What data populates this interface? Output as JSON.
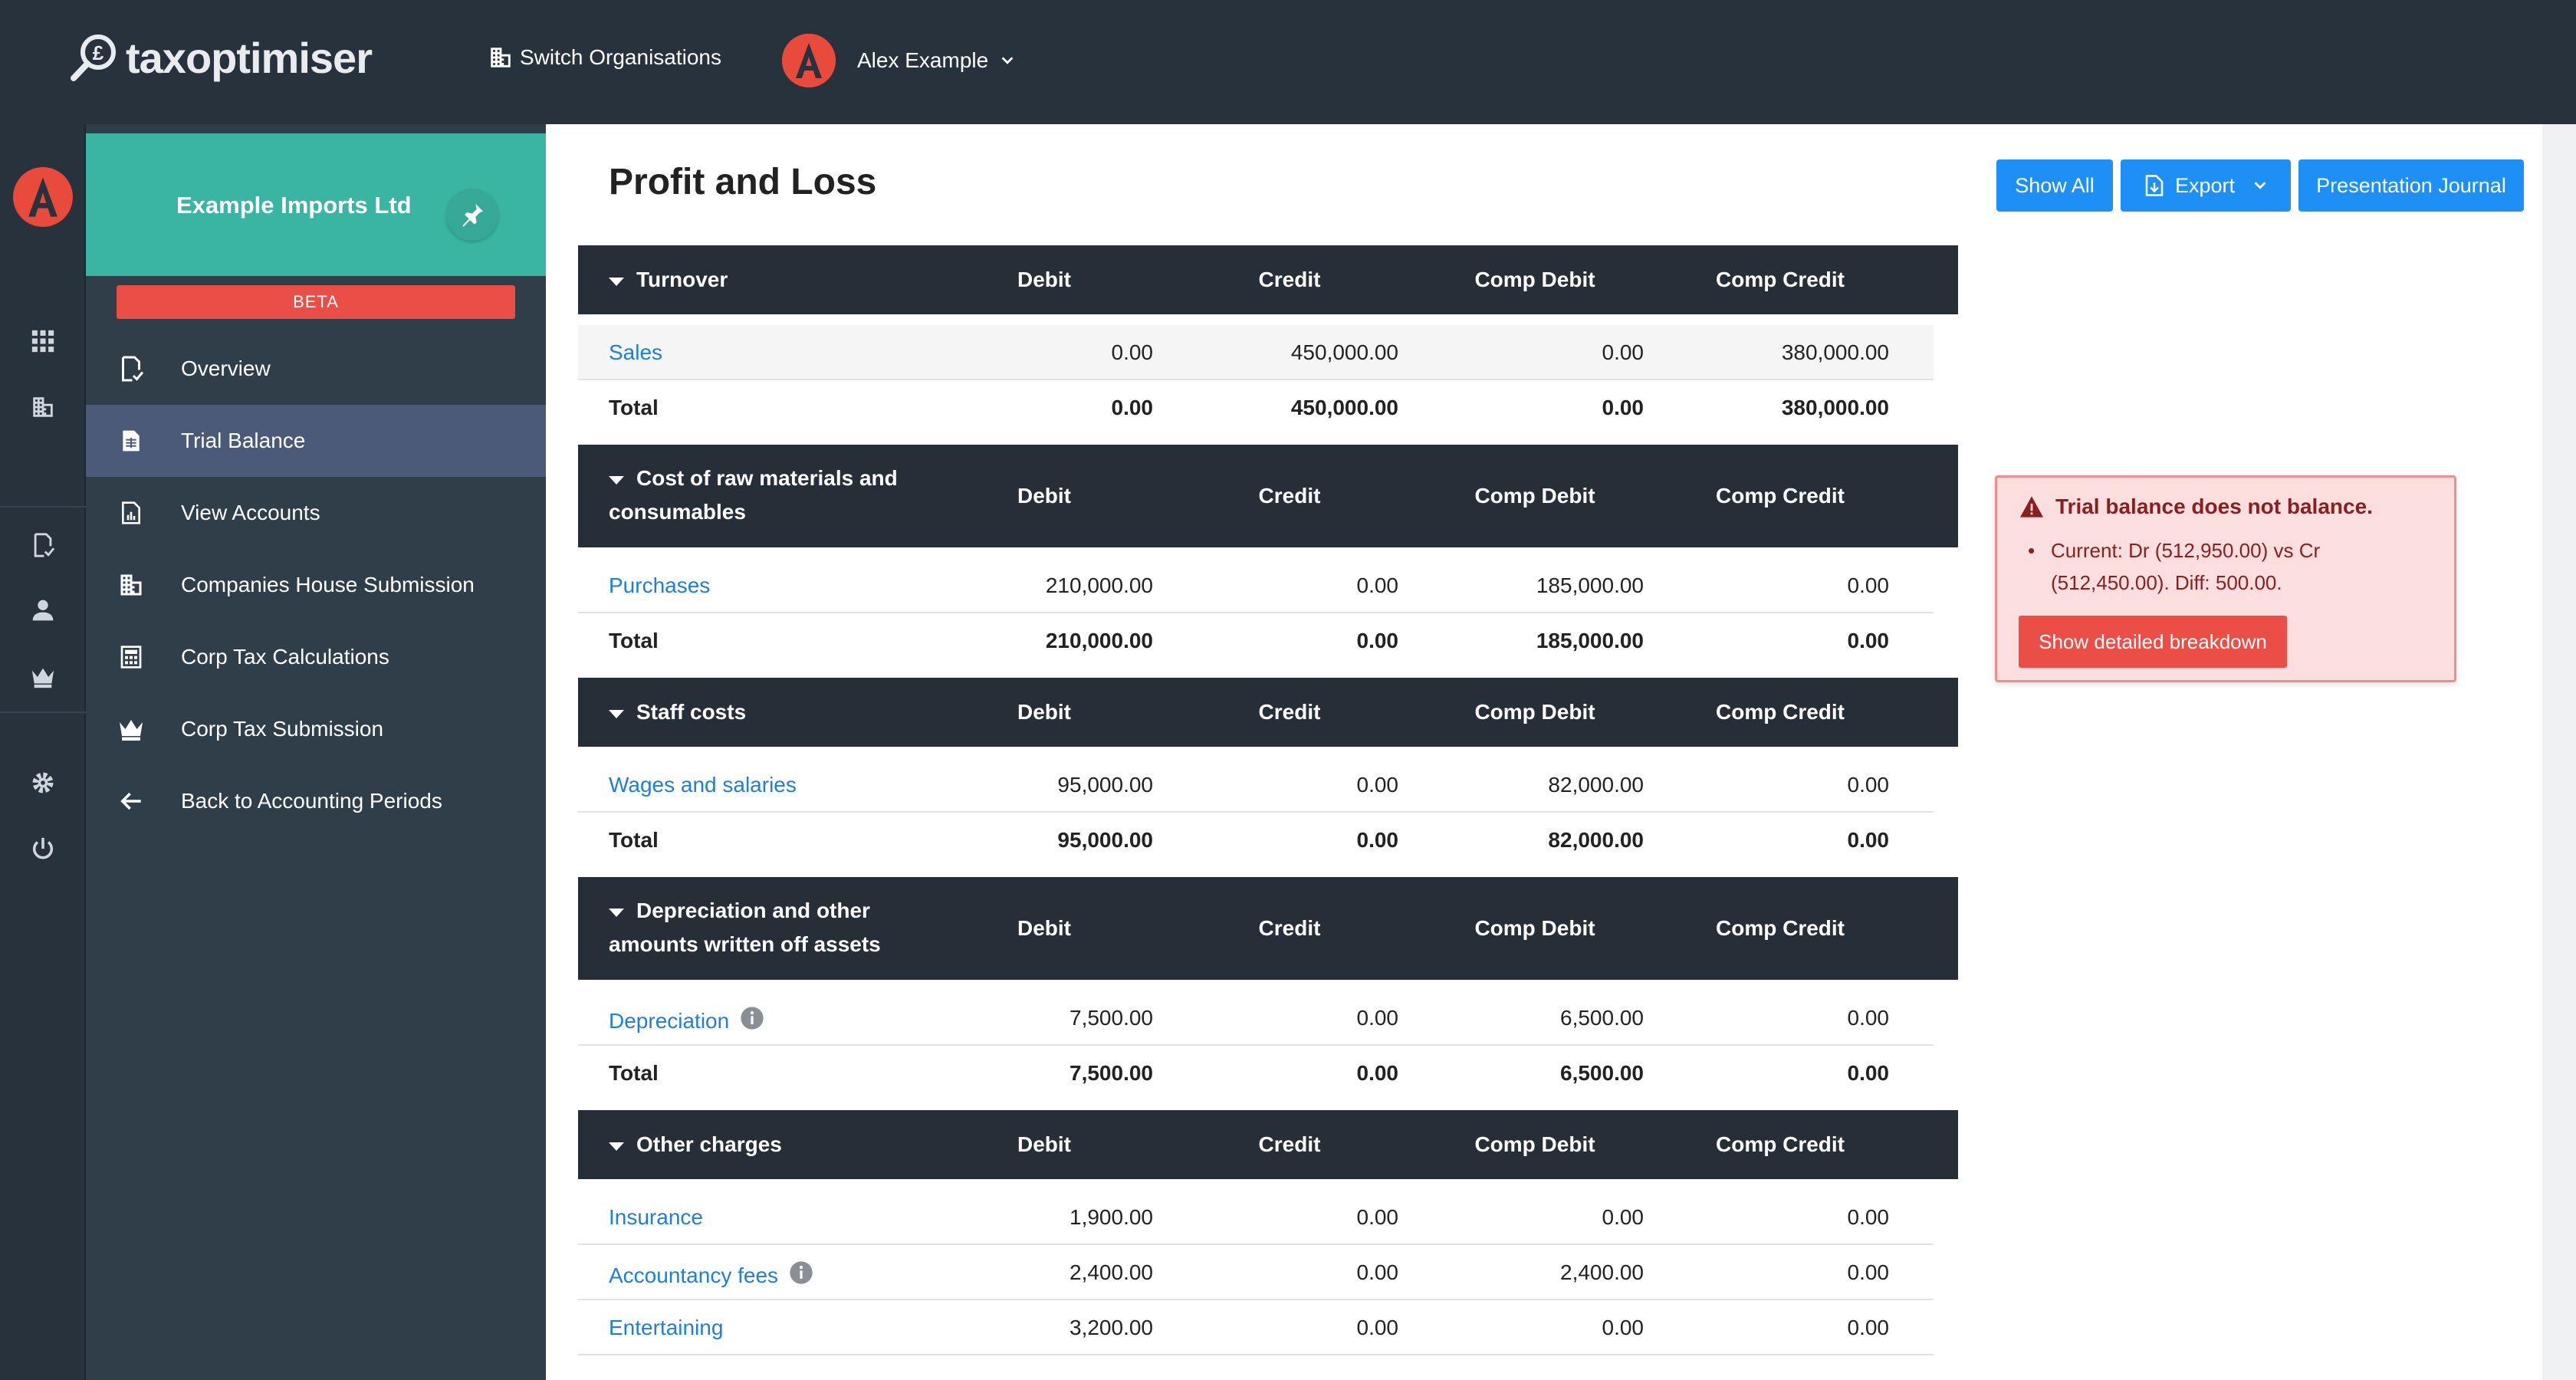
{
  "app": {
    "brand": "taxoptimiser",
    "switch_org_label": "Switch Organisations",
    "user_name": "Alex Example",
    "avatar_letter": "A"
  },
  "sidebar": {
    "org_name": "Example Imports Ltd",
    "beta_label": "BETA",
    "items": [
      {
        "label": "Overview",
        "icon": "document-check-icon"
      },
      {
        "label": "Trial Balance",
        "icon": "ledger-icon",
        "active": true
      },
      {
        "label": "View Accounts",
        "icon": "chart-document-icon"
      },
      {
        "label": "Companies House Submission",
        "icon": "building-icon"
      },
      {
        "label": "Corp Tax Calculations",
        "icon": "calculator-icon"
      },
      {
        "label": "Corp Tax Submission",
        "icon": "crown-icon"
      },
      {
        "label": "Back to Accounting Periods",
        "icon": "arrow-left-icon"
      }
    ]
  },
  "page": {
    "title": "Profit and Loss",
    "buttons": {
      "show_all": "Show All",
      "export": "Export",
      "presentation_journal": "Presentation Journal"
    }
  },
  "columns": {
    "debit": "Debit",
    "credit": "Credit",
    "comp_debit": "Comp Debit",
    "comp_credit": "Comp Credit"
  },
  "sections": [
    {
      "title_line1": "Turnover",
      "title_line2": "",
      "rows": [
        {
          "name": "Sales",
          "debit": "0.00",
          "credit": "450,000.00",
          "comp_debit": "0.00",
          "comp_credit": "380,000.00",
          "info": false
        }
      ],
      "total": {
        "label": "Total",
        "debit": "0.00",
        "credit": "450,000.00",
        "comp_debit": "0.00",
        "comp_credit": "380,000.00"
      }
    },
    {
      "title_line1": "Cost of raw materials and",
      "title_line2": "consumables",
      "rows": [
        {
          "name": "Purchases",
          "debit": "210,000.00",
          "credit": "0.00",
          "comp_debit": "185,000.00",
          "comp_credit": "0.00",
          "info": false
        }
      ],
      "total": {
        "label": "Total",
        "debit": "210,000.00",
        "credit": "0.00",
        "comp_debit": "185,000.00",
        "comp_credit": "0.00"
      }
    },
    {
      "title_line1": "Staff costs",
      "title_line2": "",
      "rows": [
        {
          "name": "Wages and salaries",
          "debit": "95,000.00",
          "credit": "0.00",
          "comp_debit": "82,000.00",
          "comp_credit": "0.00",
          "info": false
        }
      ],
      "total": {
        "label": "Total",
        "debit": "95,000.00",
        "credit": "0.00",
        "comp_debit": "82,000.00",
        "comp_credit": "0.00"
      }
    },
    {
      "title_line1": "Depreciation and other",
      "title_line2": "amounts written off assets",
      "rows": [
        {
          "name": "Depreciation",
          "debit": "7,500.00",
          "credit": "0.00",
          "comp_debit": "6,500.00",
          "comp_credit": "0.00",
          "info": true
        }
      ],
      "total": {
        "label": "Total",
        "debit": "7,500.00",
        "credit": "0.00",
        "comp_debit": "6,500.00",
        "comp_credit": "0.00"
      }
    },
    {
      "title_line1": "Other charges",
      "title_line2": "",
      "rows": [
        {
          "name": "Insurance",
          "debit": "1,900.00",
          "credit": "0.00",
          "comp_debit": "0.00",
          "comp_credit": "0.00",
          "info": false
        },
        {
          "name": "Accountancy fees",
          "debit": "2,400.00",
          "credit": "0.00",
          "comp_debit": "2,400.00",
          "comp_credit": "0.00",
          "info": true
        },
        {
          "name": "Entertaining",
          "debit": "3,200.00",
          "credit": "0.00",
          "comp_debit": "0.00",
          "comp_credit": "0.00",
          "info": false
        }
      ]
    }
  ],
  "alert": {
    "title": "Trial balance does not balance.",
    "line1": "Current: Dr (512,950.00) vs Cr",
    "line2": "(512,450.00). Diff: 500.00.",
    "button": "Show detailed breakdown"
  },
  "colors": {
    "accent": "#1e90f5",
    "danger": "#ea4e47",
    "teal": "#3ab5a3",
    "header": "#262e38"
  }
}
